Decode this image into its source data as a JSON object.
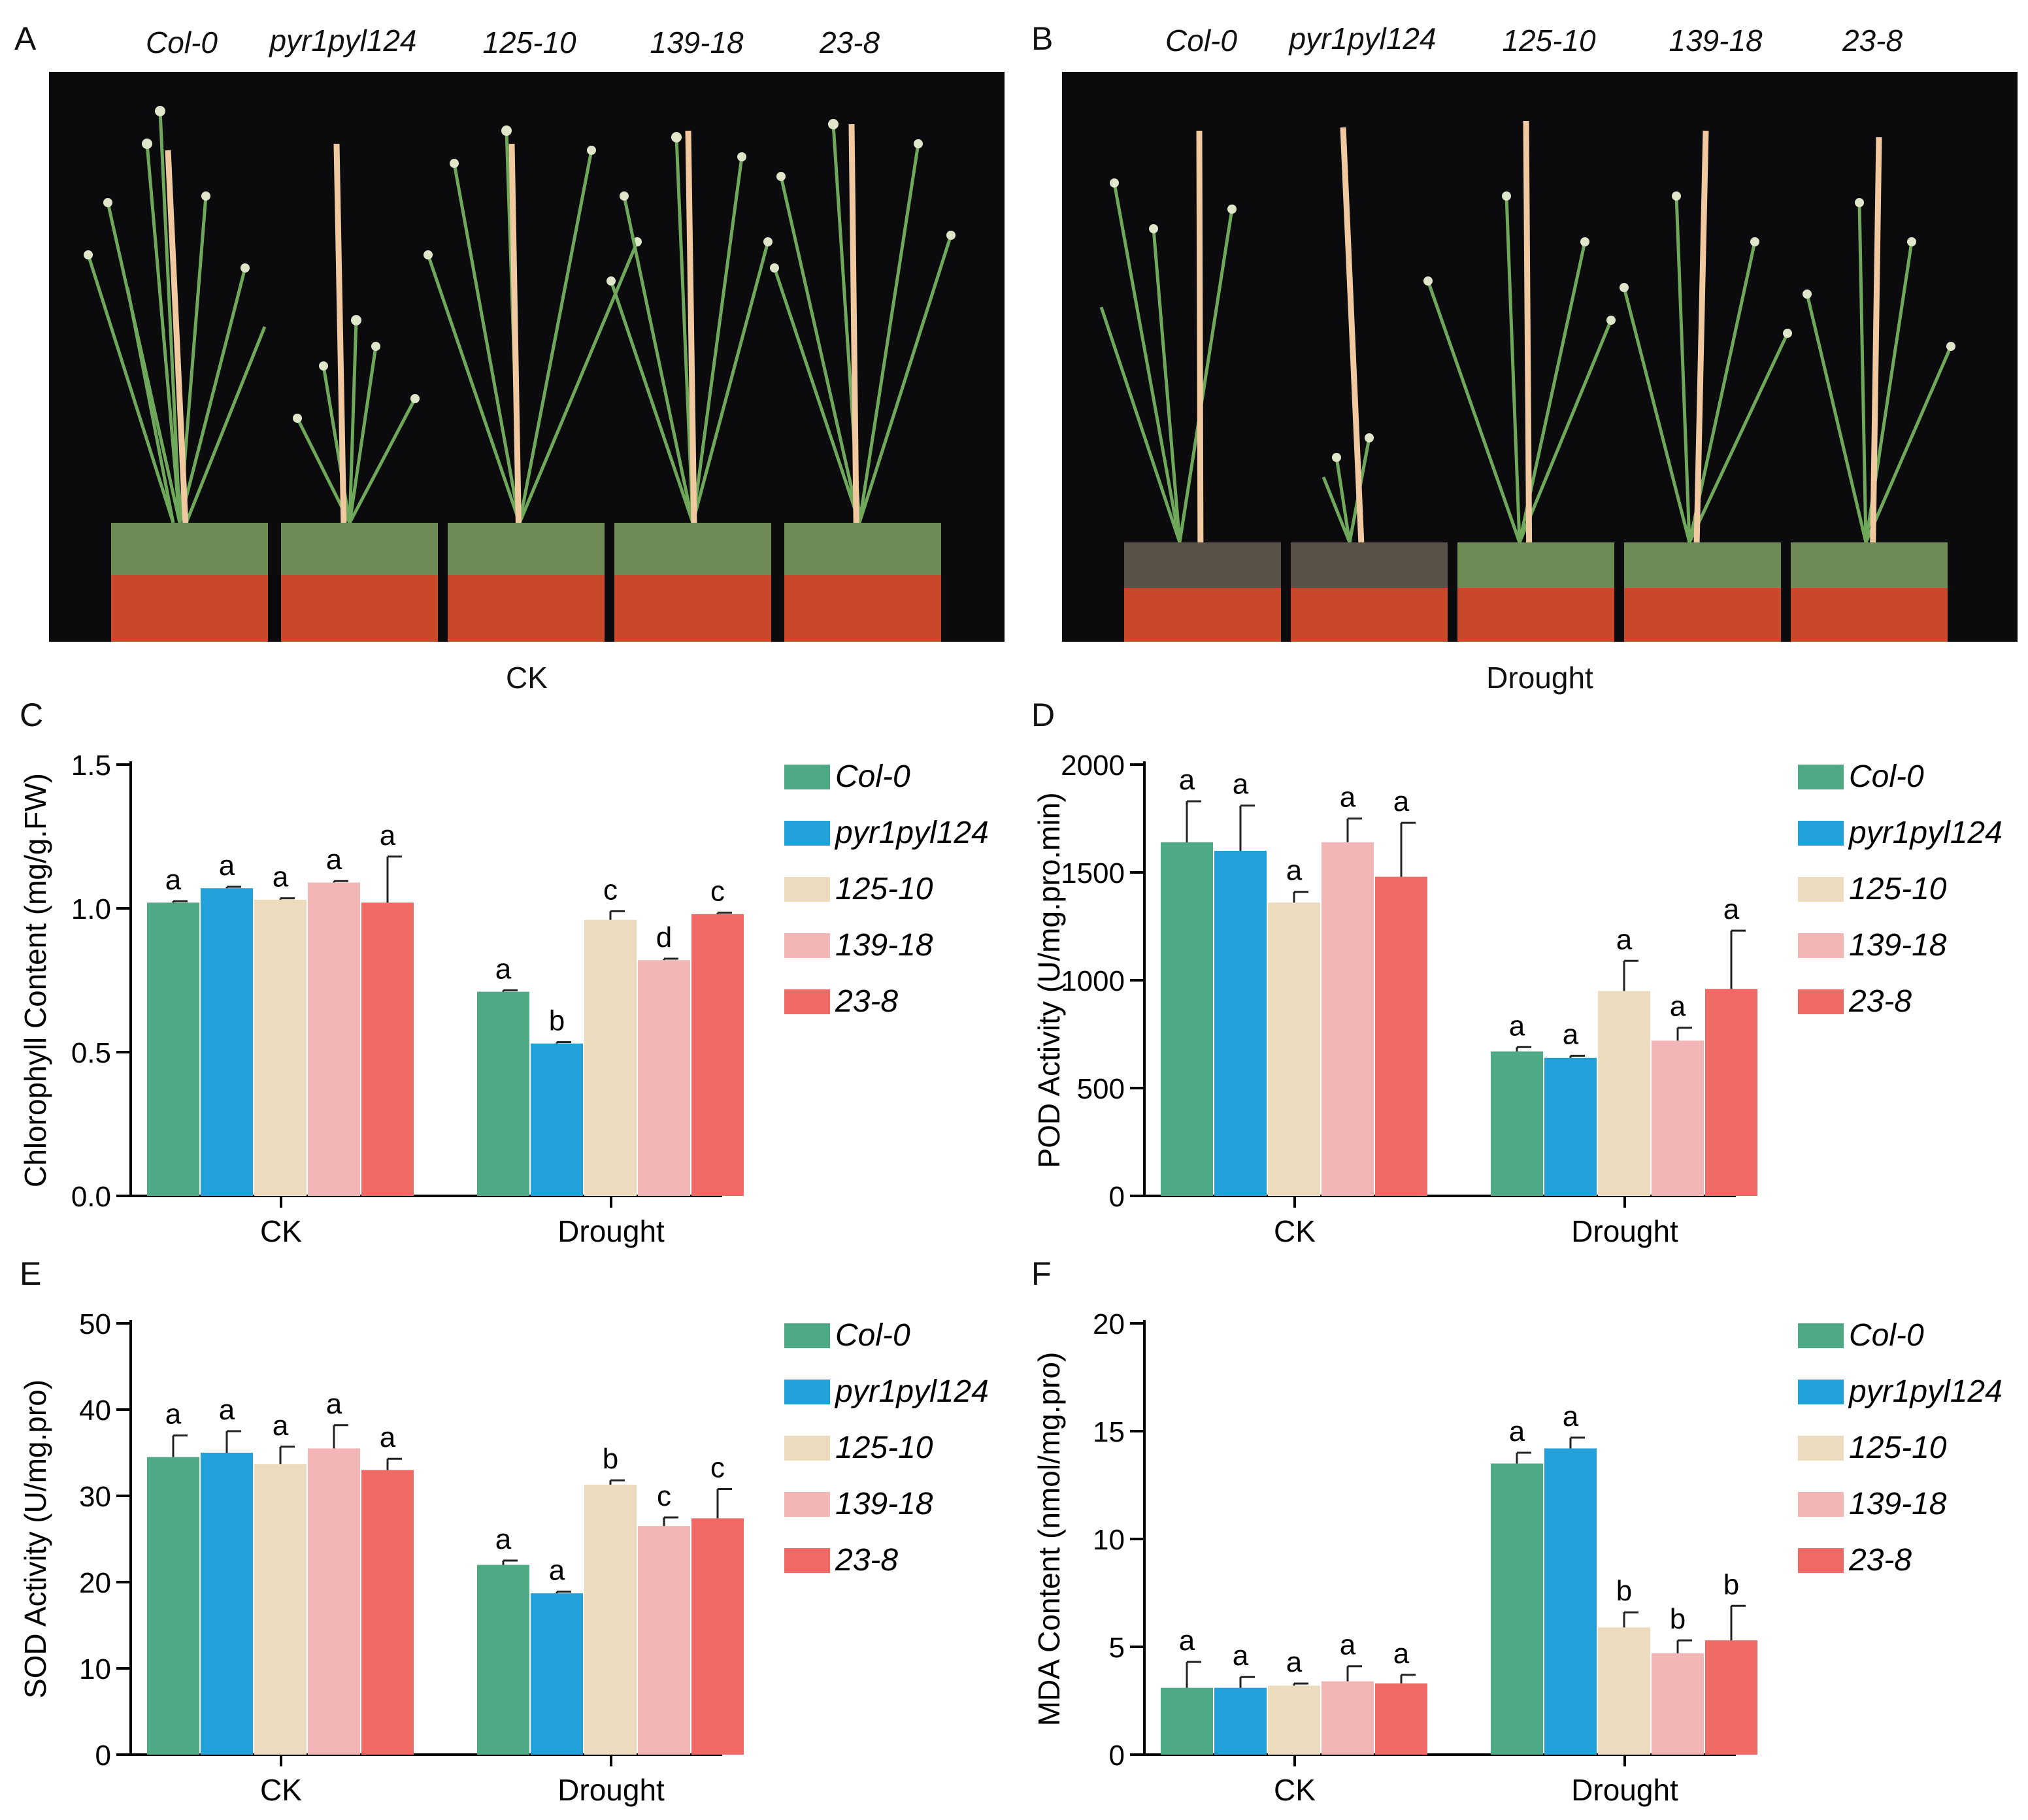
{
  "panels": {
    "A": "A",
    "B": "B",
    "C": "C",
    "D": "D",
    "E": "E",
    "F": "F"
  },
  "photos": {
    "genotypes": [
      "Col-0",
      "pyr1pyl124",
      "125-10",
      "139-18",
      "23-8"
    ],
    "caption_left": "CK",
    "caption_right": "Drought"
  },
  "colors": {
    "Col-0": "#4ea985",
    "pyr1pyl124": "#22a0da",
    "125-10": "#eddbbd",
    "139-18": "#f2b6b6",
    "23-8": "#ef6a64"
  },
  "chart_data": [
    {
      "id": "C",
      "type": "bar",
      "ylabel": "Chlorophyll Content (mg/g.FW)",
      "categories": [
        "CK",
        "Drought"
      ],
      "ylim": [
        0,
        1.5
      ],
      "yticks": [
        "0.0",
        "0.5",
        "1.0",
        "1.5"
      ],
      "ytick_values": [
        0,
        0.5,
        1.0,
        1.5
      ],
      "series": [
        {
          "name": "Col-0",
          "values": [
            1.02,
            0.71
          ],
          "errors": [
            0.005,
            0.005
          ],
          "letters": [
            "a",
            "a"
          ]
        },
        {
          "name": "pyr1pyl124",
          "values": [
            1.07,
            0.53
          ],
          "errors": [
            0.005,
            0.005
          ],
          "letters": [
            "a",
            "b"
          ]
        },
        {
          "name": "125-10",
          "values": [
            1.03,
            0.96
          ],
          "errors": [
            0.005,
            0.03
          ],
          "letters": [
            "a",
            "c"
          ]
        },
        {
          "name": "139-18",
          "values": [
            1.09,
            0.82
          ],
          "errors": [
            0.005,
            0.005
          ],
          "letters": [
            "a",
            "d"
          ]
        },
        {
          "name": "23-8",
          "values": [
            1.02,
            0.98
          ],
          "errors": [
            0.16,
            0.005
          ],
          "letters": [
            "a",
            "c"
          ]
        }
      ]
    },
    {
      "id": "D",
      "type": "bar",
      "ylabel": "POD Activity (U/mg.pro.min)",
      "categories": [
        "CK",
        "Drought"
      ],
      "ylim": [
        0,
        2000
      ],
      "yticks": [
        "0",
        "500",
        "1000",
        "1500",
        "2000"
      ],
      "ytick_values": [
        0,
        500,
        1000,
        1500,
        2000
      ],
      "series": [
        {
          "name": "Col-0",
          "values": [
            1640,
            670
          ],
          "errors": [
            190,
            20
          ],
          "letters": [
            "a",
            "a"
          ]
        },
        {
          "name": "pyr1pyl124",
          "values": [
            1600,
            640
          ],
          "errors": [
            210,
            10
          ],
          "letters": [
            "a",
            "a"
          ]
        },
        {
          "name": "125-10",
          "values": [
            1360,
            950
          ],
          "errors": [
            50,
            140
          ],
          "letters": [
            "a",
            "a"
          ]
        },
        {
          "name": "139-18",
          "values": [
            1640,
            720
          ],
          "errors": [
            110,
            60
          ],
          "letters": [
            "a",
            "a"
          ]
        },
        {
          "name": "23-8",
          "values": [
            1480,
            960
          ],
          "errors": [
            250,
            270
          ],
          "letters": [
            "a",
            "a"
          ]
        }
      ]
    },
    {
      "id": "E",
      "type": "bar",
      "ylabel": "SOD Activity (U/mg.pro)",
      "categories": [
        "CK",
        "Drought"
      ],
      "ylim": [
        0,
        50
      ],
      "yticks": [
        "0",
        "10",
        "20",
        "30",
        "40",
        "50"
      ],
      "ytick_values": [
        0,
        10,
        20,
        30,
        40,
        50
      ],
      "series": [
        {
          "name": "Col-0",
          "values": [
            34.5,
            22.0
          ],
          "errors": [
            2.5,
            0.5
          ],
          "letters": [
            "a",
            "a"
          ]
        },
        {
          "name": "pyr1pyl124",
          "values": [
            35.0,
            18.7
          ],
          "errors": [
            2.5,
            0.2
          ],
          "letters": [
            "a",
            "a"
          ]
        },
        {
          "name": "125-10",
          "values": [
            33.7,
            31.3
          ],
          "errors": [
            2.0,
            0.5
          ],
          "letters": [
            "a",
            "b"
          ]
        },
        {
          "name": "139-18",
          "values": [
            35.5,
            26.5
          ],
          "errors": [
            2.7,
            1.0
          ],
          "letters": [
            "a",
            "c"
          ]
        },
        {
          "name": "23-8",
          "values": [
            33.0,
            27.4
          ],
          "errors": [
            1.3,
            3.4
          ],
          "letters": [
            "a",
            "c"
          ]
        }
      ]
    },
    {
      "id": "F",
      "type": "bar",
      "ylabel": "MDA Content (nmol/mg.pro)",
      "categories": [
        "CK",
        "Drought"
      ],
      "ylim": [
        0,
        20
      ],
      "yticks": [
        "0",
        "5",
        "10",
        "15",
        "20"
      ],
      "ytick_values": [
        0,
        5,
        10,
        15,
        20
      ],
      "series": [
        {
          "name": "Col-0",
          "values": [
            3.1,
            13.5
          ],
          "errors": [
            1.2,
            0.5
          ],
          "letters": [
            "a",
            "a"
          ]
        },
        {
          "name": "pyr1pyl124",
          "values": [
            3.1,
            14.2
          ],
          "errors": [
            0.5,
            0.5
          ],
          "letters": [
            "a",
            "a"
          ]
        },
        {
          "name": "125-10",
          "values": [
            3.2,
            5.9
          ],
          "errors": [
            0.1,
            0.7
          ],
          "letters": [
            "a",
            "b"
          ]
        },
        {
          "name": "139-18",
          "values": [
            3.4,
            4.7
          ],
          "errors": [
            0.7,
            0.6
          ],
          "letters": [
            "a",
            "b"
          ]
        },
        {
          "name": "23-8",
          "values": [
            3.3,
            5.3
          ],
          "errors": [
            0.4,
            1.6
          ],
          "letters": [
            "a",
            "b"
          ]
        }
      ]
    }
  ]
}
